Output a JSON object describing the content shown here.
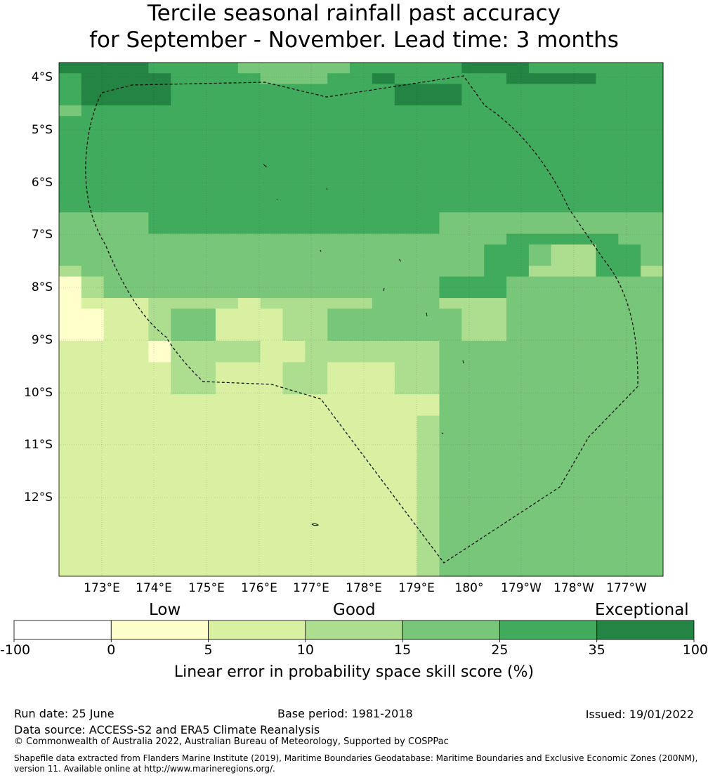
{
  "title_line1": "Tercile seasonal rainfall past accuracy",
  "title_line2": "for September - November. Lead time: 3 months",
  "lat_labels": [
    "4°S",
    "5°S",
    "6°S",
    "7°S",
    "8°S",
    "9°S",
    "10°S",
    "11°S",
    "12°S"
  ],
  "lon_labels": [
    "173°E",
    "174°E",
    "175°E",
    "176°E",
    "177°E",
    "178°E",
    "179°E",
    "180°",
    "179°W",
    "178°W",
    "177°W"
  ],
  "map": {
    "grid": [
      "666655554444455555666555555",
      "566665555444556555556666555",
      "566665555555555666555555555",
      "566665555555555666555555555",
      "455555555555555555555555555",
      "555555555555555555555555555",
      "555555555555555555555555555",
      "555555555555555555555555555",
      "555555555555555555555555555",
      "555555555555555555555555555",
      "555555555555555555555555555",
      "555555555555555555555555555",
      "555555555555555555555555555",
      "555555555555555555555555555",
      "444455555555555554444444444",
      "444455555555555554444444444",
      "444444444444444444445555544",
      "444444444444444444455433554",
      "444444444444444444455433554",
      "344444444444444444455333553",
      "134444444444444445554444444",
      "134444444444444445554444444",
      "122233332333334443334444444",
      "112234422233444444334444444",
      "112234422233444444334444444",
      "112234422233444444334444444",
      "222213333223333334444444444",
      "222213333223333334444444444",
      "222223322233222334444444444",
      "222223322233222334444444444",
      "222223322233222334444444444",
      "222222222222222224444444444",
      "222222222222222224444444444",
      "222222222222222234444444444",
      "222222222222222234444444444",
      "222222222222222234444444444",
      "222222222222222234444444444",
      "222222222222222234444444444",
      "222222222222222234444444444",
      "222222222222222234444444444",
      "222222222222222234444444444",
      "222222222222222234444444444",
      "222222222222222234444444444",
      "222222222222222234444444444",
      "222222222222222234444444444",
      "222222222222222234444444444",
      "222222222222222234444444444",
      "222222222222222234444444444"
    ]
  },
  "legend": {
    "categories": [
      "Low",
      "Good",
      "Exceptional"
    ],
    "tick_labels": [
      "-100",
      "0",
      "5",
      "10",
      "15",
      "25",
      "35",
      "100"
    ],
    "bin_colors": [
      "#ffffff",
      "#ffffcc",
      "#d9f0a3",
      "#addd8e",
      "#78c679",
      "#41ab5d",
      "#238443"
    ],
    "title": "Linear error in probability space skill score (%)"
  },
  "footer": {
    "run_date": "Run date: 25 June",
    "base_period": "Base period: 1981-2018",
    "issued": "Issued: 19/01/2022",
    "data_source": "Data source: ACCESS-S2 and ERA5 Climate Reanalysis",
    "copyright": "© Commonwealth of Australia 2022, Australian Bureau of Meteorology, Supported by COSPPac",
    "shapefile": "Shapefile data extracted from Flanders Marine Institute (2019), Maritime Boundaries Geodatabase: Maritime Boundaries and Exclusive Economic Zones (200NM), version 11. Available online at http://www.marineregions.org/."
  }
}
